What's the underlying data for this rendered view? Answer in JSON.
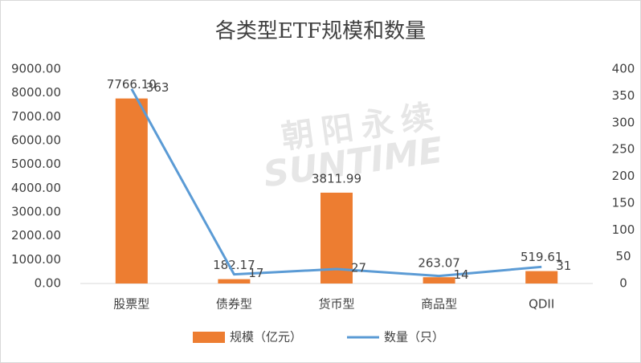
{
  "chart_data": {
    "type": "bar_line",
    "title": "各类型ETF规模和数量",
    "watermark": [
      "朝阳永续",
      "SUNTIME"
    ],
    "categories": [
      "股票型",
      "债券型",
      "货币型",
      "商品型",
      "QDII"
    ],
    "series": [
      {
        "name": "规模（亿元）",
        "type": "bar",
        "color": "#ED7D31",
        "axis": "y",
        "values": [
          7766.1,
          182.17,
          3811.99,
          263.07,
          519.61
        ],
        "value_labels": [
          "7766.10",
          "182.17",
          "3811.99",
          "263.07",
          "519.61"
        ]
      },
      {
        "name": "数量（只）",
        "type": "line",
        "color": "#5B9BD5",
        "axis": "y2",
        "values": [
          363,
          17,
          27,
          14,
          31
        ]
      }
    ],
    "ylim": [
      0,
      9000
    ],
    "yticks": [
      {
        "value": 0,
        "label": "0.00"
      },
      {
        "value": 1000,
        "label": "1000.00"
      },
      {
        "value": 2000,
        "label": "2000.00"
      },
      {
        "value": 3000,
        "label": "3000.00"
      },
      {
        "value": 4000,
        "label": "4000.00"
      },
      {
        "value": 5000,
        "label": "5000.00"
      },
      {
        "value": 6000,
        "label": "6000.00"
      },
      {
        "value": 7000,
        "label": "7000.00"
      },
      {
        "value": 8000,
        "label": "8000.00"
      },
      {
        "value": 9000,
        "label": "9000.00"
      }
    ],
    "y2lim": [
      0,
      400
    ],
    "y2ticks": [
      0,
      50,
      100,
      150,
      200,
      250,
      300,
      350,
      400
    ],
    "grid": false,
    "legend": "bottom"
  }
}
